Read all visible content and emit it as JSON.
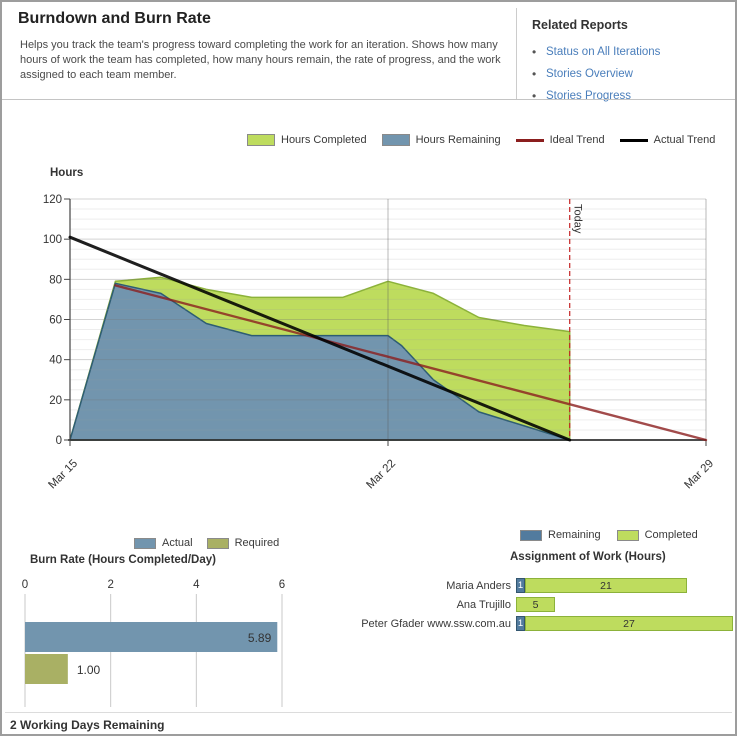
{
  "header": {
    "title": "Burndown and Burn Rate",
    "description": "Helps you track the team's progress toward completing the work for an iteration. Shows how many hours of work the team has completed, how many hours remain, the rate of progress, and the work assigned to each team member.",
    "related_reports": {
      "heading": "Related Reports",
      "links": [
        "Status on All Iterations",
        "Stories Overview",
        "Stories Progress"
      ]
    }
  },
  "colors": {
    "completed_green": "#bedc5e",
    "completed_green_edge": "#8cb23a",
    "remaining_blue": "#7295ae",
    "remaining_blue_edge": "#2e5d73",
    "ideal_trend_red": "#8b1e1e",
    "actual_trend_black": "#000000",
    "today_line_red": "#c42323",
    "required_olive": "#a9b064",
    "assignment_blue": "#527b9e",
    "link_blue": "#4a7ebb"
  },
  "burndown": {
    "y_axis_label": "Hours",
    "today_label": "Today",
    "legend": [
      {
        "label": "Hours Completed",
        "swatch": "box",
        "color": "#bedc5e"
      },
      {
        "label": "Hours Remaining",
        "swatch": "box",
        "color": "#7295ae"
      },
      {
        "label": "Ideal Trend",
        "swatch": "line",
        "color": "#8b1e1e"
      },
      {
        "label": "Actual Trend",
        "swatch": "line",
        "color": "#000000"
      }
    ]
  },
  "burn_rate": {
    "title": "Burn Rate (Hours Completed/Day)",
    "legend": [
      {
        "label": "Actual",
        "swatch": "box",
        "color": "#7295ae"
      },
      {
        "label": "Required",
        "swatch": "box",
        "color": "#a9b064"
      }
    ]
  },
  "assignment": {
    "title": "Assignment of Work (Hours)",
    "legend": [
      {
        "label": "Remaining",
        "swatch": "box",
        "color": "#527b9e"
      },
      {
        "label": "Completed",
        "swatch": "box",
        "color": "#bedc5e"
      }
    ]
  },
  "footer": {
    "days_remaining": "2 Working Days Remaining"
  },
  "chart_data": [
    {
      "id": "burndown",
      "type": "area",
      "title": "Iteration burndown (hours by day)",
      "ylabel": "Hours",
      "ylim": [
        0,
        120
      ],
      "xlim_days": [
        0,
        14
      ],
      "grid": {
        "major_y_step": 20,
        "minor_y_step": 5
      },
      "x_tick_days": [
        0,
        7,
        14
      ],
      "x_tick_labels": [
        "Mar 15",
        "Mar 22",
        "Mar 29"
      ],
      "y_ticks": [
        0,
        20,
        40,
        60,
        80,
        100,
        120
      ],
      "today_day": 11,
      "today_label": "Today",
      "legend_position": "top",
      "series": [
        {
          "name": "Hours Completed (stacked total top edge)",
          "role": "area",
          "color": "#bedc5e",
          "edge": "#8cb23a",
          "points": [
            [
              0,
              0
            ],
            [
              1,
              79
            ],
            [
              2,
              81
            ],
            [
              3,
              75
            ],
            [
              4,
              71
            ],
            [
              5,
              71
            ],
            [
              6,
              71
            ],
            [
              7,
              79
            ],
            [
              8,
              73
            ],
            [
              9,
              61
            ],
            [
              10,
              57
            ],
            [
              11,
              54
            ],
            [
              11,
              0
            ]
          ]
        },
        {
          "name": "Hours Remaining",
          "role": "area",
          "color": "#7295ae",
          "edge": "#2e5d73",
          "points": [
            [
              0,
              0
            ],
            [
              1,
              78
            ],
            [
              2,
              73
            ],
            [
              3,
              58
            ],
            [
              4,
              52
            ],
            [
              5,
              52
            ],
            [
              6,
              52
            ],
            [
              7,
              52
            ],
            [
              7.3,
              47
            ],
            [
              8,
              30
            ],
            [
              9,
              14
            ],
            [
              10,
              7
            ],
            [
              11,
              0
            ]
          ]
        },
        {
          "name": "Ideal Trend",
          "role": "line",
          "color": "#8b1e1e",
          "stroke_width": 2.4,
          "opacity": 0.8,
          "points": [
            [
              1,
              77
            ],
            [
              14,
              0
            ]
          ]
        },
        {
          "name": "Actual Trend",
          "role": "line",
          "color": "#000000",
          "stroke_width": 3,
          "opacity": 0.88,
          "points": [
            [
              0,
              101
            ],
            [
              11,
              0
            ]
          ]
        }
      ]
    },
    {
      "id": "burn_rate",
      "type": "bar",
      "orientation": "horizontal",
      "title": "Burn Rate (Hours Completed/Day)",
      "categories": [
        "Actual",
        "Required"
      ],
      "values": [
        5.89,
        1.0
      ],
      "value_labels": [
        "5.89",
        "1.00"
      ],
      "colors": [
        "#7295ae",
        "#a9b064"
      ],
      "xlim": [
        0,
        6
      ],
      "x_ticks": [
        0,
        2,
        4,
        6
      ],
      "grid": true,
      "legend_position": "top"
    },
    {
      "id": "assignment",
      "type": "stacked-bar",
      "orientation": "horizontal",
      "title": "Assignment of Work (Hours)",
      "categories": [
        "Maria Anders",
        "Ana Trujillo",
        "Peter Gfader www.ssw.com.au"
      ],
      "series": [
        {
          "name": "Remaining",
          "color": "#527b9e",
          "values": [
            1,
            0,
            1
          ]
        },
        {
          "name": "Completed",
          "color": "#bedc5e",
          "values": [
            21,
            5,
            27
          ]
        }
      ],
      "legend_position": "top"
    }
  ]
}
